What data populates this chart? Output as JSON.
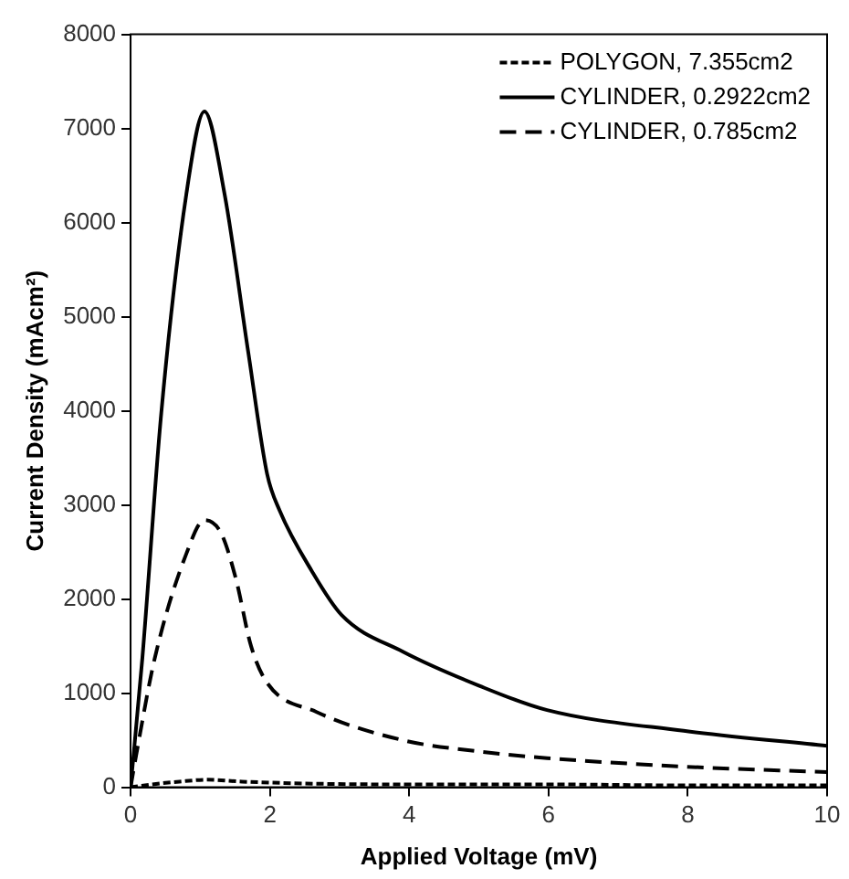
{
  "chart_data": {
    "type": "line",
    "xlabel": "Applied Voltage (mV)",
    "ylabel": "Current Density (mAcm²)",
    "xlim": [
      0,
      10
    ],
    "xticks": [
      0,
      2,
      4,
      6,
      8,
      10
    ],
    "ylim": [
      0,
      8000
    ],
    "yticks": [
      0,
      1000,
      2000,
      3000,
      4000,
      5000,
      6000,
      7000,
      8000
    ],
    "grid": false,
    "legend": "top right",
    "marker": "none",
    "series": [
      {
        "name": "POLYGON, 7.355cm2",
        "color": "#000000",
        "line_style": "dotted",
        "x": [
          0,
          0.3,
          0.7,
          1.1,
          1.6,
          2.5,
          4,
          6,
          8,
          10
        ],
        "values": [
          0,
          30,
          60,
          80,
          60,
          40,
          30,
          30,
          20,
          20
        ]
      },
      {
        "name": "CYLINDER, 0.2922cm2",
        "color": "#000000",
        "line_style": "solid",
        "x": [
          0,
          0.17,
          0.44,
          0.8,
          1.06,
          1.35,
          1.69,
          1.96,
          2.14,
          2.6,
          3.03,
          3.91,
          5,
          5.98,
          7.94,
          10
        ],
        "values": [
          0,
          1380,
          3970,
          6300,
          7180,
          6300,
          4620,
          3330,
          2940,
          2300,
          1830,
          1440,
          1080,
          820,
          600,
          440
        ]
      },
      {
        "name": "CYLINDER, 0.785cm2",
        "color": "#000000",
        "line_style": "dashed",
        "x": [
          0,
          0.08,
          0.35,
          0.8,
          1.06,
          1.3,
          1.51,
          1.73,
          1.96,
          2.67,
          3.91,
          5,
          5.98,
          7.94,
          10
        ],
        "values": [
          0,
          340,
          1380,
          2480,
          2840,
          2700,
          2220,
          1500,
          1110,
          800,
          500,
          380,
          310,
          220,
          160
        ]
      }
    ]
  }
}
